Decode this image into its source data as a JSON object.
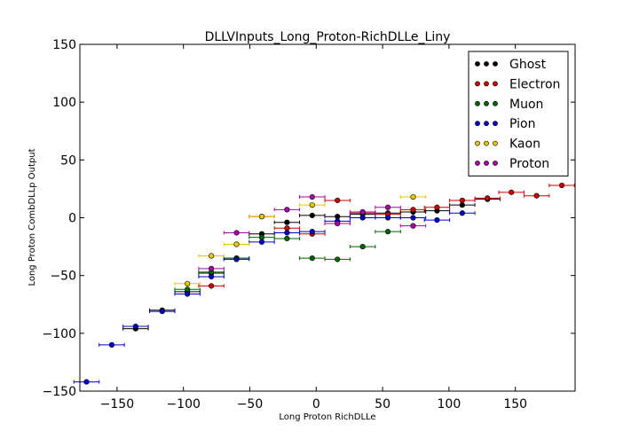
{
  "chart_data": {
    "type": "scatter",
    "title": "DLLVInputs_Long_Proton-RichDLLe_Liny",
    "xlabel": "Long Proton RichDLLe",
    "ylabel": "Long Proton CombDLLp Output",
    "xlim": [
      -178,
      195
    ],
    "ylim": [
      -150,
      150
    ],
    "xticks": [
      -150,
      -100,
      -50,
      0,
      50,
      100,
      150
    ],
    "yticks": [
      -150,
      -100,
      -50,
      0,
      50,
      100,
      150
    ],
    "grid": false,
    "legend_position": "top-right",
    "x_error_halfwidth": 9.5,
    "series": [
      {
        "name": "Ghost",
        "color": "#000000",
        "points": [
          [
            -136,
            -96
          ],
          [
            -116,
            -80
          ],
          [
            -97,
            -64
          ],
          [
            -79,
            -48
          ],
          [
            -60,
            -35
          ],
          [
            -41,
            -14
          ],
          [
            -22,
            -4
          ],
          [
            -3,
            2
          ],
          [
            16,
            1
          ],
          [
            35,
            3
          ],
          [
            54,
            4
          ],
          [
            73,
            5
          ],
          [
            91,
            6
          ],
          [
            110,
            11
          ],
          [
            129,
            16
          ]
        ]
      },
      {
        "name": "Electron",
        "color": "#cc0000",
        "points": [
          [
            -79,
            -59
          ],
          [
            -41,
            1
          ],
          [
            -22,
            -9
          ],
          [
            -3,
            -14
          ],
          [
            16,
            15
          ],
          [
            35,
            4
          ],
          [
            54,
            3
          ],
          [
            73,
            7
          ],
          [
            91,
            9
          ],
          [
            110,
            15
          ],
          [
            129,
            17
          ],
          [
            147,
            22
          ],
          [
            166,
            19
          ],
          [
            185,
            28
          ]
        ]
      },
      {
        "name": "Muon",
        "color": "#006600",
        "points": [
          [
            -97,
            -62
          ],
          [
            -79,
            -47
          ],
          [
            -60,
            -35
          ],
          [
            -41,
            -17
          ],
          [
            -22,
            -18
          ],
          [
            -3,
            -35
          ],
          [
            16,
            -36
          ],
          [
            35,
            -25
          ],
          [
            54,
            -12
          ]
        ]
      },
      {
        "name": "Pion",
        "color": "#0000cc",
        "points": [
          [
            -173,
            -142
          ],
          [
            -154,
            -110
          ],
          [
            -136,
            -94
          ],
          [
            -116,
            -81
          ],
          [
            -97,
            -66
          ],
          [
            -79,
            -51
          ],
          [
            -60,
            -36
          ],
          [
            -41,
            -21
          ],
          [
            -22,
            -13
          ],
          [
            -3,
            -12
          ],
          [
            16,
            -3
          ],
          [
            35,
            0
          ],
          [
            54,
            0
          ],
          [
            73,
            0
          ],
          [
            91,
            -2
          ],
          [
            110,
            4
          ]
        ]
      },
      {
        "name": "Kaon",
        "color": "#e6c800",
        "points": [
          [
            -97,
            -57
          ],
          [
            -79,
            -33
          ],
          [
            -60,
            -23
          ],
          [
            -41,
            1
          ],
          [
            -3,
            11
          ],
          [
            73,
            18
          ]
        ]
      },
      {
        "name": "Proton",
        "color": "#aa00aa",
        "points": [
          [
            -79,
            -44
          ],
          [
            -60,
            -13
          ],
          [
            -22,
            7
          ],
          [
            -3,
            18
          ],
          [
            16,
            -5
          ],
          [
            35,
            5
          ],
          [
            54,
            9
          ],
          [
            73,
            -7
          ]
        ]
      }
    ]
  }
}
